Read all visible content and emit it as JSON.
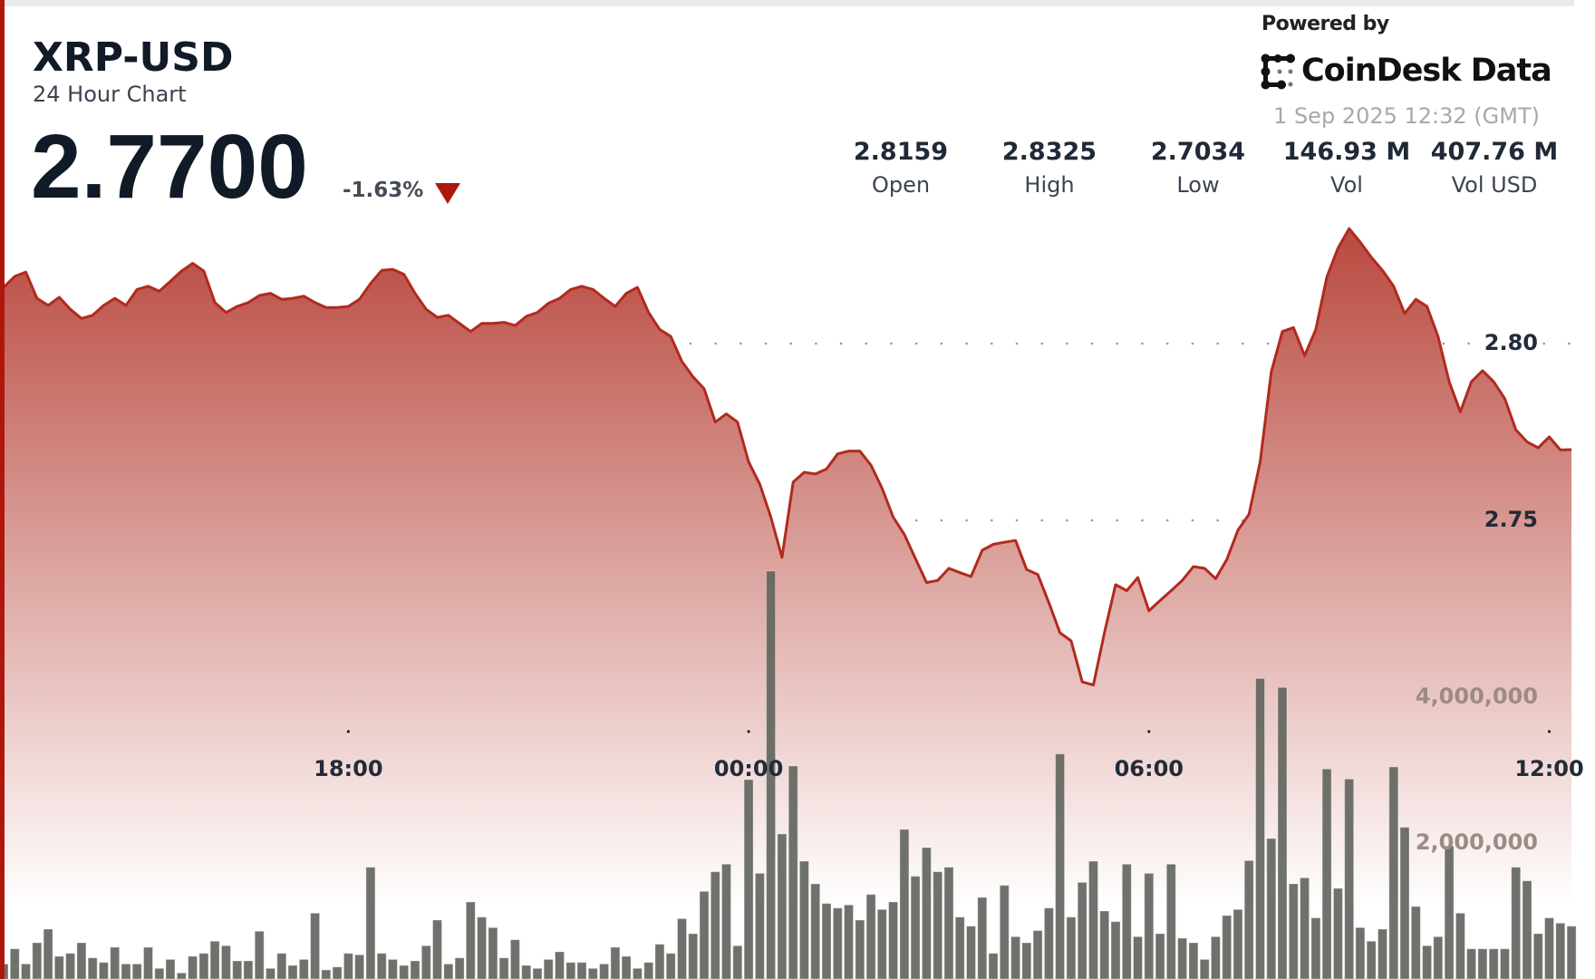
{
  "header": {
    "ticker": "XRP-USD",
    "subtitle": "24 Hour Chart",
    "price": "2.7700",
    "change": "-1.63%",
    "change_direction": "down",
    "change_icon": "triangle-down-icon"
  },
  "stats": [
    {
      "value": "2.8159",
      "label": "Open"
    },
    {
      "value": "2.8325",
      "label": "High"
    },
    {
      "value": "2.7034",
      "label": "Low"
    },
    {
      "value": "146.93 M",
      "label": "Vol"
    },
    {
      "value": "407.76 M",
      "label": "Vol USD"
    }
  ],
  "branding": {
    "powered_by": "Powered by",
    "logo_text": "CoinDesk Data",
    "timestamp": "1 Sep 2025 12:32 (GMT)"
  },
  "colors": {
    "line": "#b22a1e",
    "fill_top": "#b8463c",
    "volume_bar": "#5f635c",
    "accent": "#b0170c"
  },
  "chart_data": {
    "type": "area",
    "title": "XRP-USD",
    "subtitle": "24 Hour Chart",
    "x_ticks": [
      "18:00",
      "00:00",
      "06:00",
      "12:00"
    ],
    "y_ticks": [
      "2.80",
      "2.75"
    ],
    "y_ticks_values": [
      2.8,
      2.75
    ],
    "volume_ticks": [
      "4,000,000",
      "2,000,000"
    ],
    "volume_ticks_values": [
      4000000,
      2000000
    ],
    "grid": "dotted horizontal",
    "x": [
      "12:50",
      "13:00",
      "13:10",
      "13:20",
      "13:30",
      "13:40",
      "13:50",
      "14:00",
      "14:10",
      "14:20",
      "14:30",
      "14:40",
      "14:50",
      "15:00",
      "15:10",
      "15:20",
      "15:30",
      "15:40",
      "15:50",
      "16:00",
      "16:10",
      "16:20",
      "16:30",
      "16:40",
      "16:50",
      "17:00",
      "17:10",
      "17:20",
      "17:30",
      "17:40",
      "17:50",
      "18:00",
      "18:10",
      "18:20",
      "18:30",
      "18:40",
      "18:50",
      "19:00",
      "19:10",
      "19:20",
      "19:30",
      "19:40",
      "19:50",
      "20:00",
      "20:10",
      "20:20",
      "20:30",
      "20:40",
      "20:50",
      "21:00",
      "21:10",
      "21:20",
      "21:30",
      "21:40",
      "21:50",
      "22:00",
      "22:10",
      "22:20",
      "22:30",
      "22:40",
      "22:50",
      "23:00",
      "23:10",
      "23:20",
      "23:30",
      "23:40",
      "23:50",
      "00:00",
      "00:10",
      "00:20",
      "00:30",
      "00:40",
      "00:50",
      "01:00",
      "01:10",
      "01:20",
      "01:30",
      "01:40",
      "01:50",
      "02:00",
      "02:10",
      "02:20",
      "02:30",
      "02:40",
      "02:50",
      "03:00",
      "03:10",
      "03:20",
      "03:30",
      "03:40",
      "03:50",
      "04:00",
      "04:10",
      "04:20",
      "04:30",
      "04:40",
      "04:50",
      "05:00",
      "05:10",
      "05:20",
      "05:30",
      "05:40",
      "05:50",
      "06:00",
      "06:10",
      "06:20",
      "06:30",
      "06:40",
      "06:50",
      "07:00",
      "07:10",
      "07:20",
      "07:30",
      "07:40",
      "07:50",
      "08:00",
      "08:10",
      "08:20",
      "08:30",
      "08:40",
      "08:50",
      "09:00",
      "09:10",
      "09:20",
      "09:30",
      "09:40",
      "09:50",
      "10:00",
      "10:10",
      "10:20",
      "10:30",
      "10:40",
      "10:50",
      "11:00",
      "11:10",
      "11:20",
      "11:30",
      "11:40",
      "11:50",
      "12:00",
      "12:10",
      "12:20"
    ],
    "series": [
      {
        "type": "area",
        "values": [
          2.8159,
          2.819,
          2.8202,
          2.8128,
          2.8108,
          2.8131,
          2.8097,
          2.8071,
          2.808,
          2.8108,
          2.8128,
          2.8108,
          2.8153,
          2.8162,
          2.8148,
          2.8176,
          2.8205,
          2.8227,
          2.8205,
          2.8116,
          2.8088,
          2.8105,
          2.8116,
          2.8136,
          2.8142,
          2.8125,
          2.8128,
          2.8134,
          2.8116,
          2.8102,
          2.8102,
          2.8105,
          2.8125,
          2.817,
          2.8207,
          2.821,
          2.8196,
          2.8142,
          2.8097,
          2.8074,
          2.808,
          2.8057,
          2.8034,
          2.8057,
          2.8057,
          2.806,
          2.8051,
          2.8077,
          2.8088,
          2.8114,
          2.8128,
          2.8153,
          2.8162,
          2.8153,
          2.8128,
          2.8105,
          2.8142,
          2.8159,
          2.8088,
          2.804,
          2.802,
          2.7949,
          2.7906,
          2.7872,
          2.7778,
          2.7801,
          2.7778,
          2.7665,
          2.7602,
          2.7509,
          2.7395,
          2.7608,
          2.7636,
          2.7631,
          2.7645,
          2.7688,
          2.7696,
          2.7696,
          2.7656,
          2.7591,
          2.7509,
          2.746,
          2.7392,
          2.7324,
          2.733,
          2.7364,
          2.7352,
          2.7341,
          2.7415,
          2.7432,
          2.7438,
          2.7443,
          2.7361,
          2.7347,
          2.7267,
          2.7182,
          2.7159,
          2.7043,
          2.7034,
          2.7182,
          2.7318,
          2.7301,
          2.7338,
          2.7244,
          2.7273,
          2.7301,
          2.733,
          2.7369,
          2.7364,
          2.7335,
          2.7389,
          2.7472,
          2.7517,
          2.7665,
          2.792,
          2.8034,
          2.8045,
          2.7966,
          2.804,
          2.8188,
          2.827,
          2.8325,
          2.8287,
          2.8244,
          2.8207,
          2.8162,
          2.8085,
          2.8125,
          2.8105,
          2.802,
          2.7892,
          2.7807,
          2.7892,
          2.7923,
          2.7892,
          2.7844,
          2.7756,
          2.7722,
          2.7705,
          2.7736,
          2.7699,
          2.77
        ]
      },
      {
        "type": "bar",
        "values": [
          331000,
          538000,
          331000,
          621000,
          807000,
          435000,
          476000,
          621000,
          414000,
          352000,
          559000,
          331000,
          331000,
          559000,
          269000,
          393000,
          207000,
          435000,
          476000,
          642000,
          580000,
          373000,
          373000,
          779000,
          269000,
          476000,
          311000,
          393000,
          1027000,
          248000,
          290000,
          476000,
          456000,
          1656000,
          476000,
          393000,
          311000,
          373000,
          580000,
          932000,
          331000,
          414000,
          1180000,
          973000,
          828000,
          414000,
          662000,
          311000,
          269000,
          393000,
          497000,
          352000,
          352000,
          269000,
          331000,
          559000,
          435000,
          269000,
          352000,
          600000,
          476000,
          952000,
          745000,
          1325000,
          1594000,
          1698000,
          580000,
          2857000,
          1573000,
          5714000,
          2112000,
          3043000,
          1739000,
          1428000,
          1159000,
          1097000,
          1139000,
          932000,
          1283000,
          1077000,
          1180000,
          2174000,
          1532000,
          1925000,
          1594000,
          1656000,
          973000,
          849000,
          1242000,
          476000,
          1408000,
          704000,
          621000,
          787000,
          1097000,
          3209000,
          973000,
          1449000,
          1739000,
          1056000,
          911000,
          1698000,
          704000,
          1573000,
          745000,
          1698000,
          683000,
          621000,
          393000,
          704000,
          994000,
          1077000,
          1747000,
          4244000,
          2050000,
          4120000,
          1428000,
          1511000,
          961000,
          3002000,
          1366000,
          2865000,
          828000,
          642000,
          807000,
          3031000,
          2203000,
          1118000,
          580000,
          704000,
          1946000,
          1027000,
          538000,
          538000,
          538000,
          538000,
          1656000,
          1470000,
          745000,
          961000,
          890000,
          849000
        ]
      }
    ]
  }
}
